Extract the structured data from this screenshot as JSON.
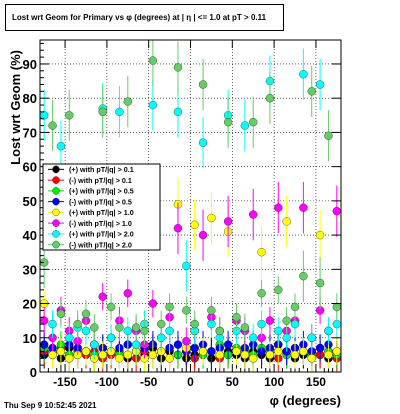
{
  "page": {
    "title": "Lost wrt Geom for Primary vs φ (degrees) at |  η | <= 1.0 at pT > 0.11",
    "timestamp": "Thu Sep  9 10:52:45 2021"
  },
  "colors": {
    "black": "#000000",
    "red": "#ff0000",
    "green": "#00ee00",
    "blue": "#0000ff",
    "yellow": "#ffff00",
    "magenta": "#ff00ff",
    "cyan": "#00ffff",
    "lightgreen": "#66cc66"
  },
  "chart_data": {
    "type": "scatter",
    "xlabel": "φ (degrees)",
    "ylabel": "Lost wrt Geom (%)",
    "xlim": [
      -180,
      180
    ],
    "ylim": [
      0,
      97
    ],
    "x_ticks": [
      -150,
      -100,
      -50,
      0,
      50,
      100,
      150
    ],
    "y_ticks": [
      0,
      10,
      20,
      30,
      40,
      50,
      60,
      70,
      80,
      90
    ],
    "grid": true,
    "legend_position": "middle-left",
    "series": [
      {
        "name": "(+) with pT/|q| > 0.1",
        "color": "black",
        "x": [
          -175,
          -165,
          -155,
          -145,
          -135,
          -125,
          -115,
          -105,
          -95,
          -85,
          -75,
          -65,
          -55,
          -45,
          -35,
          -25,
          -15,
          -5,
          5,
          15,
          25,
          35,
          45,
          55,
          65,
          75,
          85,
          95,
          105,
          115,
          125,
          135,
          145,
          155,
          165,
          175
        ],
        "y": [
          5,
          6,
          4,
          7,
          5,
          6,
          4,
          5,
          6,
          5,
          4,
          6,
          5,
          7,
          4,
          6,
          5,
          4,
          5,
          6,
          4,
          5,
          6,
          5,
          4,
          6,
          5,
          4,
          6,
          5,
          4,
          5,
          6,
          5,
          4,
          5
        ]
      },
      {
        "name": "(-) with pT/|q| > 0.1",
        "color": "red",
        "x": [
          -175,
          -165,
          -155,
          -145,
          -135,
          -125,
          -115,
          -105,
          -95,
          -85,
          -75,
          -65,
          -55,
          -45,
          -35,
          -25,
          -15,
          -5,
          5,
          15,
          25,
          35,
          45,
          55,
          65,
          75,
          85,
          95,
          105,
          115,
          125,
          135,
          145,
          155,
          165,
          175
        ],
        "y": [
          6,
          5,
          7,
          4,
          6,
          5,
          6,
          4,
          5,
          6,
          5,
          4,
          6,
          5,
          6,
          4,
          5,
          6,
          4,
          5,
          6,
          4,
          5,
          6,
          5,
          4,
          6,
          5,
          4,
          6,
          5,
          6,
          4,
          5,
          6,
          4
        ]
      },
      {
        "name": "(+) with pT/|q| > 0.5",
        "color": "green",
        "x": [
          -175,
          -165,
          -155,
          -145,
          -135,
          -125,
          -115,
          -105,
          -95,
          -85,
          -75,
          -65,
          -55,
          -45,
          -35,
          -25,
          -15,
          -5,
          5,
          15,
          25,
          35,
          45,
          55,
          65,
          75,
          85,
          95,
          105,
          115,
          125,
          135,
          145,
          155,
          165,
          175
        ],
        "y": [
          7,
          6,
          8,
          5,
          7,
          6,
          5,
          7,
          6,
          5,
          8,
          6,
          7,
          5,
          6,
          7,
          5,
          6,
          7,
          5,
          6,
          8,
          5,
          7,
          6,
          5,
          7,
          6,
          8,
          5,
          7,
          6,
          5,
          7,
          6,
          5
        ]
      },
      {
        "name": "(-) with pT/|q| > 0.5",
        "color": "blue",
        "x": [
          -175,
          -165,
          -155,
          -145,
          -135,
          -125,
          -115,
          -105,
          -95,
          -85,
          -75,
          -65,
          -55,
          -45,
          -35,
          -25,
          -15,
          -5,
          5,
          15,
          25,
          35,
          45,
          55,
          65,
          75,
          85,
          95,
          105,
          115,
          125,
          135,
          145,
          155,
          165,
          175
        ],
        "y": [
          8,
          7,
          6,
          8,
          7,
          6,
          8,
          7,
          6,
          7,
          8,
          6,
          7,
          8,
          6,
          7,
          8,
          6,
          7,
          8,
          6,
          7,
          8,
          6,
          7,
          8,
          6,
          7,
          8,
          6,
          7,
          8,
          6,
          7,
          8,
          6
        ]
      },
      {
        "name": "(+) with pT/|q| > 1.0",
        "color": "yellow",
        "x": [
          -175,
          -165,
          -155,
          -145,
          -135,
          -125,
          -115,
          -105,
          -95,
          -85,
          -75,
          -65,
          -55,
          -45,
          -35,
          -25,
          -15,
          -5,
          5,
          15,
          25,
          35,
          45,
          55,
          65,
          75,
          85,
          95,
          105,
          115,
          125,
          135,
          145,
          155,
          165,
          175
        ],
        "y": [
          20,
          5,
          6,
          4,
          5,
          6,
          4,
          5,
          6,
          4,
          5,
          6,
          4,
          5,
          6,
          4,
          49,
          7,
          43,
          6,
          45,
          5,
          41,
          6,
          5,
          4,
          35,
          5,
          6,
          44,
          5,
          6,
          4,
          40,
          5,
          6
        ]
      },
      {
        "name": "(-) with pT/|q| > 1.0",
        "color": "magenta",
        "x": [
          -175,
          -165,
          -155,
          -145,
          -135,
          -125,
          -115,
          -105,
          -95,
          -85,
          -75,
          -65,
          -55,
          -45,
          -35,
          -25,
          -15,
          -5,
          5,
          15,
          25,
          35,
          45,
          55,
          65,
          75,
          85,
          95,
          105,
          115,
          125,
          135,
          145,
          155,
          165,
          175
        ],
        "y": [
          15,
          10,
          18,
          12,
          9,
          15,
          8,
          22,
          10,
          15,
          23,
          12,
          8,
          20,
          10,
          16,
          42,
          9,
          12,
          40,
          16,
          12,
          44,
          15,
          12,
          46,
          10,
          15,
          48,
          12,
          15,
          48,
          10,
          18,
          12,
          47
        ]
      },
      {
        "name": "(+) with pT/|q| > 2.0",
        "color": "cyan",
        "x": [
          -175,
          -165,
          -155,
          -145,
          -135,
          -125,
          -115,
          -105,
          -95,
          -85,
          -75,
          -65,
          -55,
          -45,
          -35,
          -25,
          -15,
          -5,
          5,
          15,
          25,
          35,
          45,
          55,
          65,
          75,
          85,
          95,
          105,
          115,
          125,
          135,
          145,
          155,
          165,
          175
        ],
        "y": [
          75,
          14,
          66,
          10,
          13,
          12,
          8,
          77,
          10,
          76,
          12,
          8,
          14,
          78,
          10,
          12,
          76,
          31,
          12,
          67,
          14,
          10,
          75,
          12,
          72,
          10,
          14,
          85,
          12,
          10,
          14,
          87,
          10,
          84,
          12,
          14
        ]
      },
      {
        "name": "(-) with pT/|q| > 2.0",
        "color": "lightgreen",
        "x": [
          -175,
          -165,
          -155,
          -145,
          -135,
          -125,
          -115,
          -105,
          -95,
          -85,
          -75,
          -65,
          -55,
          -45,
          -35,
          -25,
          -15,
          -5,
          5,
          15,
          25,
          35,
          45,
          55,
          65,
          75,
          85,
          95,
          105,
          115,
          125,
          135,
          145,
          155,
          165,
          175
        ],
        "y": [
          32,
          72,
          17,
          75,
          14,
          17,
          13,
          76,
          19,
          13,
          79,
          13,
          12,
          91,
          14,
          19,
          89,
          18,
          14,
          84,
          18,
          12,
          73,
          16,
          13,
          73,
          23,
          80,
          24,
          15,
          19,
          28,
          82,
          26,
          69,
          19
        ]
      }
    ]
  }
}
